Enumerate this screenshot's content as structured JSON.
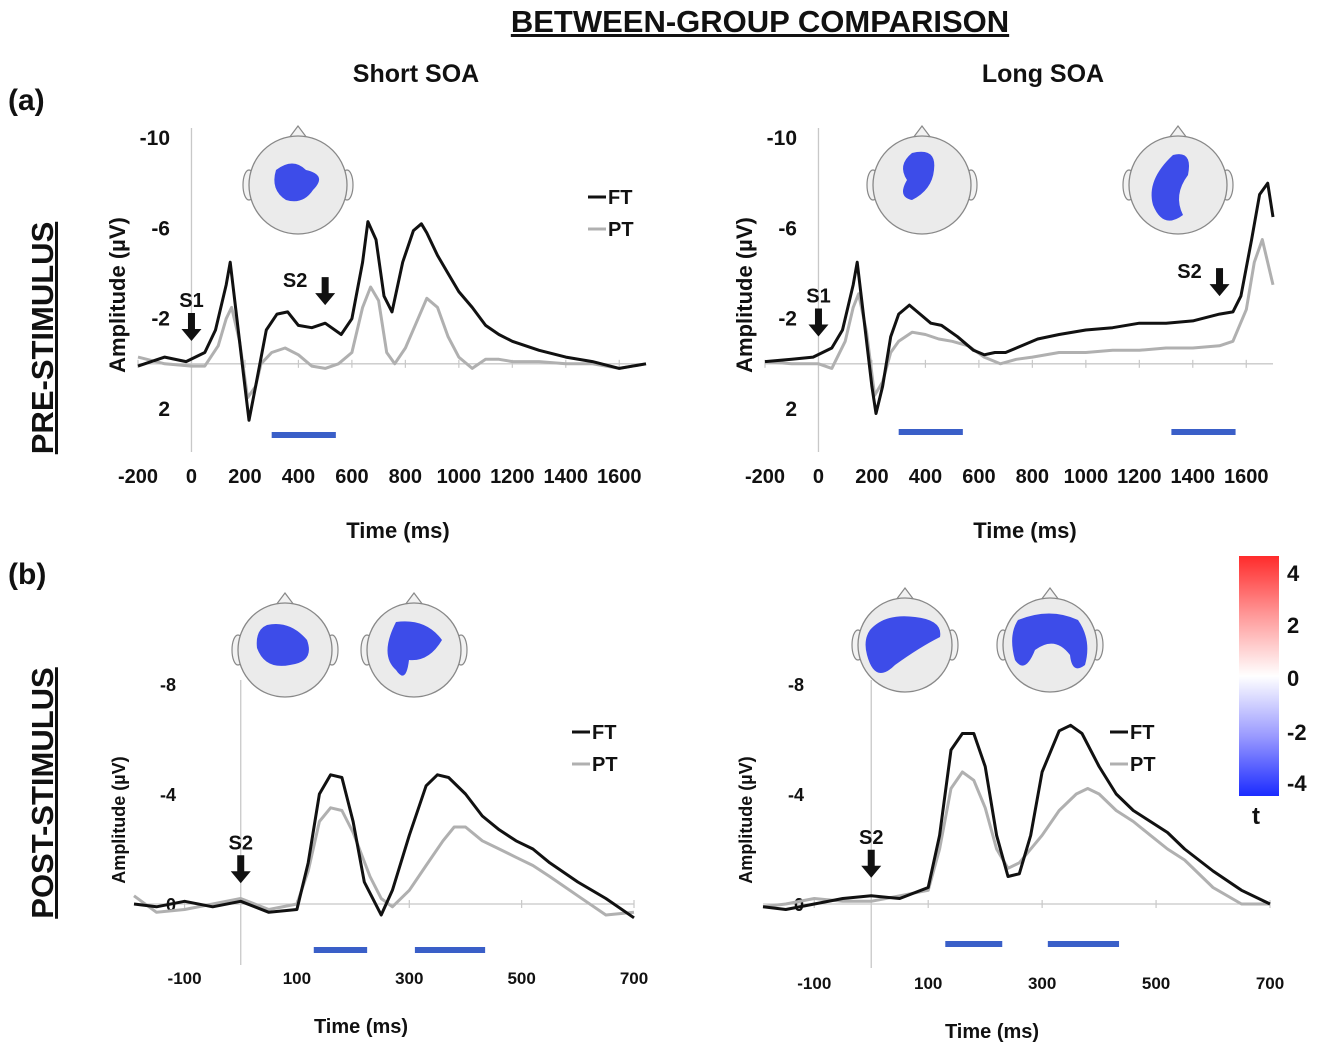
{
  "figure": {
    "title": "BETWEEN-GROUP COMPARISON",
    "columns": [
      "Short SOA",
      "Long SOA"
    ],
    "panel_labels": [
      "(a)",
      "(b)"
    ],
    "row_labels": [
      "PRE-STIMULUS",
      "POST-STIMULUS"
    ],
    "colorbar": {
      "label": "t",
      "ticks": [
        "4",
        "2",
        "0",
        "-2",
        "-4"
      ],
      "colors": [
        "#ff2b2b",
        "#ffffff",
        "#1b2bff"
      ]
    }
  },
  "chart_data": [
    {
      "type": "line",
      "id": "pre-short",
      "xlabel": "Time (ms)",
      "ylabel": "Amplitude (µV)",
      "xlim": [
        -200,
        1700
      ],
      "ylim": [
        -10,
        4
      ],
      "y_inverted": true,
      "xticks": [
        -200,
        0,
        200,
        400,
        600,
        800,
        1000,
        1200,
        1400,
        1600
      ],
      "yticks": [
        -10,
        -6,
        -2,
        2
      ],
      "legend": [
        "FT",
        "PT"
      ],
      "series": [
        {
          "name": "FT",
          "color": "#111111",
          "x": [
            -200,
            -100,
            -20,
            50,
            90,
            130,
            145,
            170,
            200,
            215,
            240,
            280,
            320,
            360,
            400,
            450,
            500,
            560,
            600,
            640,
            660,
            690,
            720,
            750,
            790,
            830,
            860,
            880,
            920,
            960,
            1000,
            1050,
            1100,
            1150,
            1200,
            1300,
            1400,
            1500,
            1600,
            1700
          ],
          "y": [
            0.1,
            -0.3,
            -0.1,
            -0.5,
            -1.5,
            -3.5,
            -4.5,
            -2,
            1,
            2.5,
            1,
            -1.5,
            -2.2,
            -2.3,
            -1.7,
            -1.6,
            -1.8,
            -1.3,
            -2,
            -4.5,
            -6.3,
            -5.5,
            -3,
            -2.3,
            -4.5,
            -5.9,
            -6.2,
            -5.8,
            -4.8,
            -4,
            -3.2,
            -2.5,
            -1.7,
            -1.3,
            -1,
            -0.6,
            -0.3,
            -0.1,
            0.2,
            0
          ]
        },
        {
          "name": "PT",
          "color": "#b0b0b0",
          "x": [
            -200,
            -100,
            0,
            50,
            100,
            130,
            150,
            180,
            210,
            240,
            260,
            300,
            350,
            400,
            450,
            500,
            550,
            600,
            640,
            670,
            700,
            730,
            760,
            800,
            840,
            880,
            920,
            960,
            1000,
            1050,
            1100,
            1150,
            1200,
            1300,
            1400,
            1500,
            1600,
            1700
          ],
          "y": [
            -0.3,
            0,
            0.1,
            0.1,
            -0.8,
            -2,
            -2.5,
            -1,
            1.5,
            1,
            0,
            -0.5,
            -0.7,
            -0.4,
            0.1,
            0.2,
            0,
            -0.5,
            -2.5,
            -3.4,
            -2.8,
            -0.5,
            0,
            -0.7,
            -1.8,
            -2.9,
            -2.5,
            -1.2,
            -0.3,
            0.2,
            -0.2,
            -0.2,
            -0.1,
            -0.1,
            0,
            0,
            0.2,
            0
          ]
        }
      ],
      "markers": [
        {
          "label": "S1",
          "x": 0
        },
        {
          "label": "S2",
          "x": 500
        }
      ],
      "significance_bars": [
        [
          300,
          540
        ]
      ],
      "topomaps": 1
    },
    {
      "type": "line",
      "id": "pre-long",
      "xlabel": "Time (ms)",
      "ylabel": "Amplitude (µV)",
      "xlim": [
        -200,
        1700
      ],
      "ylim": [
        -10,
        4
      ],
      "y_inverted": true,
      "xticks": [
        -200,
        0,
        200,
        400,
        600,
        800,
        1000,
        1200,
        1400,
        1600
      ],
      "yticks": [
        -10,
        -6,
        -2,
        2
      ],
      "legend": [],
      "series": [
        {
          "name": "FT",
          "color": "#111111",
          "x": [
            -200,
            -100,
            -20,
            50,
            90,
            130,
            145,
            170,
            200,
            215,
            240,
            270,
            300,
            340,
            380,
            420,
            460,
            520,
            580,
            620,
            660,
            700,
            760,
            820,
            900,
            1000,
            1100,
            1200,
            1300,
            1400,
            1500,
            1550,
            1580,
            1620,
            1650,
            1680,
            1700
          ],
          "y": [
            -0.1,
            -0.2,
            -0.3,
            -0.7,
            -1.5,
            -3.5,
            -4.5,
            -2,
            1,
            2.2,
            1,
            -1.2,
            -2.2,
            -2.6,
            -2.2,
            -1.8,
            -1.7,
            -1.2,
            -0.6,
            -0.4,
            -0.5,
            -0.5,
            -0.8,
            -1.1,
            -1.3,
            -1.5,
            -1.6,
            -1.8,
            -1.8,
            -1.9,
            -2.2,
            -2.3,
            -3,
            -5.5,
            -7.5,
            -8,
            -6.5
          ]
        },
        {
          "name": "PT",
          "color": "#b0b0b0",
          "x": [
            -200,
            -100,
            0,
            50,
            100,
            130,
            150,
            180,
            210,
            240,
            270,
            300,
            350,
            400,
            450,
            500,
            560,
            620,
            680,
            740,
            800,
            900,
            1000,
            1100,
            1200,
            1300,
            1400,
            1500,
            1550,
            1600,
            1630,
            1660,
            1700
          ],
          "y": [
            -0.1,
            0,
            0,
            0.2,
            -1,
            -2.5,
            -3.1,
            -1.4,
            1.4,
            0.8,
            -0.5,
            -1,
            -1.4,
            -1.3,
            -1.1,
            -1,
            -0.8,
            -0.3,
            0,
            -0.2,
            -0.3,
            -0.5,
            -0.5,
            -0.6,
            -0.6,
            -0.7,
            -0.7,
            -0.8,
            -1,
            -2.4,
            -4.5,
            -5.5,
            -3.5
          ]
        }
      ],
      "markers": [
        {
          "label": "S1",
          "x": 0
        },
        {
          "label": "S2",
          "x": 1500
        }
      ],
      "significance_bars": [
        [
          300,
          540
        ],
        [
          1320,
          1560
        ]
      ],
      "topomaps": 2
    },
    {
      "type": "line",
      "id": "post-short",
      "xlabel": "Time (ms)",
      "ylabel": "Amplitude (µV)",
      "xlim": [
        -190,
        700
      ],
      "ylim": [
        -8,
        1.3
      ],
      "y_inverted": true,
      "xticks": [
        -100,
        100,
        300,
        500,
        700
      ],
      "yticks": [
        -8,
        -4,
        0
      ],
      "legend": [
        "FT",
        "PT"
      ],
      "series": [
        {
          "name": "FT",
          "color": "#111111",
          "x": [
            -190,
            -150,
            -100,
            -50,
            0,
            50,
            100,
            120,
            140,
            160,
            180,
            200,
            220,
            250,
            270,
            300,
            330,
            350,
            370,
            400,
            430,
            460,
            490,
            520,
            550,
            600,
            650,
            700
          ],
          "y": [
            0,
            0.1,
            -0.1,
            0.1,
            -0.1,
            0.3,
            0.2,
            -1.5,
            -4,
            -4.7,
            -4.6,
            -3,
            -0.8,
            0.4,
            -0.5,
            -2.5,
            -4.3,
            -4.7,
            -4.6,
            -4,
            -3.2,
            -2.7,
            -2.3,
            -2,
            -1.5,
            -0.8,
            -0.2,
            0.5
          ]
        },
        {
          "name": "PT",
          "color": "#b0b0b0",
          "x": [
            -190,
            -150,
            -100,
            -50,
            0,
            50,
            100,
            120,
            140,
            160,
            180,
            200,
            230,
            250,
            270,
            300,
            330,
            360,
            380,
            400,
            430,
            460,
            490,
            520,
            550,
            600,
            650,
            700
          ],
          "y": [
            -0.3,
            0.3,
            0.2,
            0,
            -0.2,
            0.2,
            0,
            -1.2,
            -3,
            -3.5,
            -3.4,
            -2.6,
            -1,
            -0.2,
            0.1,
            -0.5,
            -1.4,
            -2.3,
            -2.8,
            -2.8,
            -2.3,
            -2,
            -1.7,
            -1.4,
            -1,
            -0.3,
            0.4,
            0.3
          ]
        }
      ],
      "markers": [
        {
          "label": "S2",
          "x": 0
        }
      ],
      "significance_bars": [
        [
          130,
          225
        ],
        [
          310,
          435
        ]
      ],
      "topomaps": 2
    },
    {
      "type": "line",
      "id": "post-long",
      "xlabel": "Time (ms)",
      "ylabel": "Amplitude (µV)",
      "xlim": [
        -190,
        700
      ],
      "ylim": [
        -8,
        1.3
      ],
      "y_inverted": true,
      "xticks": [
        -100,
        100,
        300,
        500,
        700
      ],
      "yticks": [
        -8,
        -4,
        0
      ],
      "legend": [
        "FT",
        "PT"
      ],
      "series": [
        {
          "name": "FT",
          "color": "#111111",
          "x": [
            -190,
            -150,
            -100,
            -50,
            0,
            50,
            100,
            120,
            140,
            160,
            180,
            200,
            220,
            240,
            260,
            280,
            300,
            330,
            350,
            370,
            400,
            430,
            460,
            490,
            520,
            550,
            600,
            650,
            700
          ],
          "y": [
            0.1,
            0.2,
            0,
            -0.2,
            -0.3,
            -0.2,
            -0.6,
            -2.5,
            -5.6,
            -6.2,
            -6.2,
            -5,
            -2.5,
            -1,
            -1.1,
            -2.5,
            -4.8,
            -6.3,
            -6.5,
            -6.2,
            -5,
            -4,
            -3.4,
            -3,
            -2.6,
            -2,
            -1.2,
            -0.5,
            0
          ]
        },
        {
          "name": "PT",
          "color": "#b0b0b0",
          "x": [
            -190,
            -150,
            -100,
            -50,
            0,
            50,
            100,
            120,
            140,
            160,
            180,
            200,
            220,
            240,
            260,
            300,
            330,
            360,
            380,
            400,
            430,
            460,
            490,
            520,
            550,
            600,
            650,
            700
          ],
          "y": [
            0.1,
            0,
            -0.2,
            -0.1,
            -0.1,
            -0.3,
            -0.5,
            -2,
            -4.2,
            -4.8,
            -4.5,
            -3.5,
            -2,
            -1.3,
            -1.5,
            -2.5,
            -3.4,
            -4,
            -4.2,
            -4,
            -3.4,
            -3,
            -2.5,
            -2,
            -1.6,
            -0.6,
            0,
            0
          ]
        }
      ],
      "markers": [
        {
          "label": "S2",
          "x": 0
        }
      ],
      "significance_bars": [
        [
          130,
          230
        ],
        [
          310,
          435
        ]
      ],
      "topomaps": 2
    }
  ]
}
